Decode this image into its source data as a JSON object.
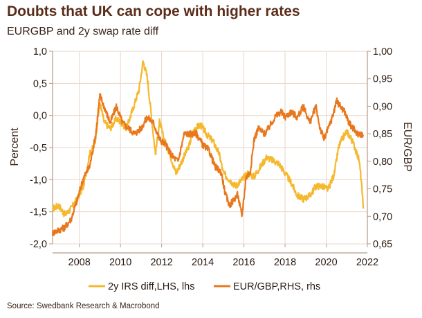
{
  "title": "Doubts that UK can cope with higher rates",
  "subtitle": "EURGBP and 2y swap rate diff",
  "source": "Source: Swedbank Research & Macrobond",
  "colors": {
    "swap": "#f5b82e",
    "eurgbp": "#e8781e",
    "grid": "#e8d6c8",
    "axis": "#b79a86"
  },
  "chart_data": {
    "type": "line",
    "x_range": [
      2006.7,
      2022.0
    ],
    "xticks": [
      2008,
      2010,
      2012,
      2014,
      2016,
      2018,
      2020,
      2022
    ],
    "xtick_labels": [
      "2008",
      "2010",
      "2012",
      "2014",
      "2016",
      "2018",
      "2020",
      "2022"
    ],
    "ylabel_left": "Percent",
    "ylim_left": [
      -2.0,
      1.0
    ],
    "yticks_left": [
      1.0,
      0.5,
      0.0,
      -0.5,
      -1.0,
      -1.5,
      -2.0
    ],
    "ytick_labels_left": [
      "1,0",
      "0,5",
      "0,0",
      "-0,5",
      "-1,0",
      "-1,5",
      "-2,0"
    ],
    "ylabel_right": "EUR/GBP",
    "ylim_right": [
      0.65,
      1.0
    ],
    "yticks_right": [
      1.0,
      0.95,
      0.9,
      0.85,
      0.8,
      0.75,
      0.7,
      0.65
    ],
    "ytick_labels_right": [
      "1,00",
      "0,95",
      "0,90",
      "0,85",
      "0,80",
      "0,75",
      "0,70",
      "0,65"
    ],
    "series": [
      {
        "name": "2y IRS diff,LHS, lhs",
        "axis": "left",
        "x": [
          2006.7,
          2007.0,
          2007.3,
          2007.6,
          2007.9,
          2008.2,
          2008.5,
          2008.75,
          2009.0,
          2009.2,
          2009.5,
          2009.8,
          2010.0,
          2010.3,
          2010.6,
          2010.9,
          2011.1,
          2011.3,
          2011.5,
          2011.7,
          2011.9,
          2012.1,
          2012.4,
          2012.7,
          2013.0,
          2013.3,
          2013.6,
          2013.9,
          2014.2,
          2014.5,
          2014.8,
          2015.0,
          2015.3,
          2015.6,
          2015.9,
          2016.2,
          2016.5,
          2016.8,
          2017.1,
          2017.4,
          2017.7,
          2018.0,
          2018.3,
          2018.6,
          2018.9,
          2019.2,
          2019.5,
          2019.8,
          2020.1,
          2020.4,
          2020.6,
          2020.8,
          2021.0,
          2021.2,
          2021.4,
          2021.6,
          2021.7,
          2021.8
        ],
        "values": [
          -1.45,
          -1.4,
          -1.55,
          -1.45,
          -1.3,
          -1.1,
          -0.6,
          -0.45,
          0.2,
          -0.1,
          -0.2,
          -0.05,
          -0.1,
          -0.2,
          0.1,
          0.4,
          0.85,
          0.6,
          0.0,
          -0.6,
          -0.1,
          -0.35,
          -0.6,
          -0.9,
          -0.7,
          -0.5,
          -0.2,
          -0.15,
          -0.3,
          -0.4,
          -0.6,
          -0.9,
          -1.0,
          -1.1,
          -1.0,
          -0.9,
          -0.95,
          -0.8,
          -0.65,
          -0.7,
          -0.75,
          -0.9,
          -1.05,
          -1.25,
          -1.3,
          -1.25,
          -1.1,
          -1.1,
          -1.15,
          -0.9,
          -0.5,
          -0.35,
          -0.25,
          -0.35,
          -0.5,
          -0.7,
          -1.0,
          -1.45
        ]
      },
      {
        "name": "EUR/GBP,RHS, rhs",
        "axis": "right",
        "x": [
          2006.7,
          2007.0,
          2007.3,
          2007.6,
          2007.9,
          2008.2,
          2008.5,
          2008.8,
          2009.0,
          2009.2,
          2009.5,
          2009.8,
          2010.1,
          2010.4,
          2010.7,
          2011.0,
          2011.3,
          2011.6,
          2011.9,
          2012.2,
          2012.5,
          2012.8,
          2013.1,
          2013.4,
          2013.7,
          2014.0,
          2014.3,
          2014.6,
          2014.9,
          2015.1,
          2015.3,
          2015.5,
          2015.7,
          2015.9,
          2016.1,
          2016.3,
          2016.5,
          2016.7,
          2017.0,
          2017.2,
          2017.5,
          2017.8,
          2018.0,
          2018.3,
          2018.6,
          2018.9,
          2019.2,
          2019.5,
          2019.7,
          2019.9,
          2020.1,
          2020.3,
          2020.5,
          2020.7,
          2020.9,
          2021.1,
          2021.3,
          2021.5,
          2021.7,
          2021.8
        ],
        "values": [
          0.67,
          0.675,
          0.68,
          0.695,
          0.73,
          0.77,
          0.79,
          0.85,
          0.92,
          0.9,
          0.87,
          0.9,
          0.87,
          0.86,
          0.85,
          0.86,
          0.88,
          0.87,
          0.84,
          0.83,
          0.81,
          0.8,
          0.85,
          0.85,
          0.85,
          0.83,
          0.82,
          0.79,
          0.78,
          0.74,
          0.72,
          0.73,
          0.74,
          0.7,
          0.77,
          0.78,
          0.84,
          0.86,
          0.85,
          0.86,
          0.88,
          0.89,
          0.88,
          0.89,
          0.88,
          0.9,
          0.87,
          0.9,
          0.86,
          0.84,
          0.86,
          0.88,
          0.91,
          0.9,
          0.89,
          0.87,
          0.86,
          0.85,
          0.85,
          0.845
        ]
      }
    ],
    "legend": [
      "2y IRS diff,LHS, lhs",
      "EUR/GBP,RHS, rhs"
    ],
    "legend_position": "bottom"
  }
}
